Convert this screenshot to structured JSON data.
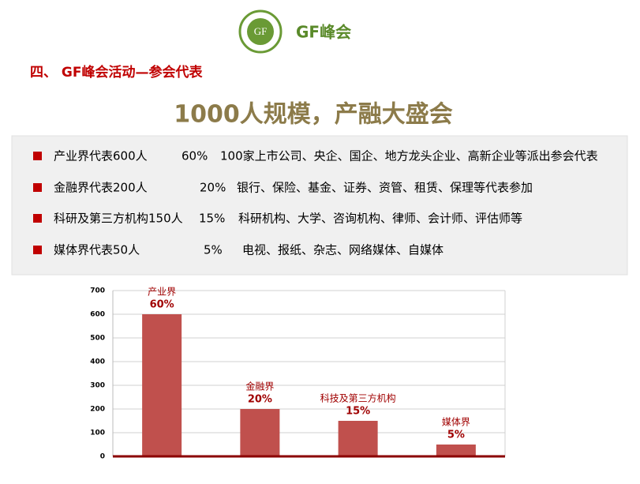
{
  "header": {
    "logo_text": "GF",
    "brand": "GF峰会"
  },
  "section_title": "四、 GF峰会活动—参会代表",
  "headline": "1000人规模，产融大盛会",
  "items": [
    {
      "label": "产业界代表600人",
      "share": "60%",
      "description": "100家上市公司、央企、国企、地方龙头企业、高新企业等派出参会代表"
    },
    {
      "label": "金融界代表200人",
      "share": "20%",
      "description": "银行、保险、基金、证券、资管、租赁、保理等代表参加"
    },
    {
      "label": "科研及第三方机构150人",
      "share": "15%",
      "description": "科研机构、大学、咨询机构、律师、会计师、评估师等"
    },
    {
      "label": "媒体界代表50人",
      "share": "5%",
      "description": "电视、报纸、杂志、网络媒体、自媒体"
    }
  ],
  "chart_data": {
    "type": "bar",
    "categories": [
      "产业界",
      "金融界",
      "科技及第三方机构",
      "媒体界"
    ],
    "values": [
      600,
      200,
      150,
      50
    ],
    "annotations": [
      "60%",
      "20%",
      "15%",
      "5%"
    ],
    "color": "#c0504d",
    "ylim": [
      0,
      700
    ],
    "yticks": [
      0,
      100,
      200,
      300,
      400,
      500,
      600,
      700
    ],
    "grid": true
  }
}
